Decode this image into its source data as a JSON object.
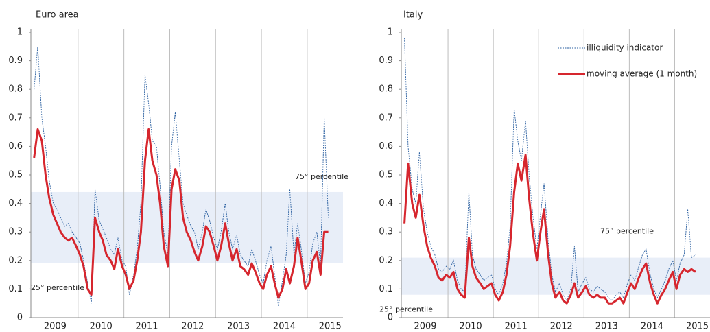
{
  "chart_data": [
    {
      "type": "line",
      "title": "Euro area",
      "x": [
        2009.04,
        2009.12,
        2009.21,
        2009.29,
        2009.37,
        2009.46,
        2009.54,
        2009.62,
        2009.71,
        2009.79,
        2009.87,
        2009.96,
        2010.04,
        2010.12,
        2010.21,
        2010.29,
        2010.37,
        2010.46,
        2010.54,
        2010.62,
        2010.71,
        2010.79,
        2010.87,
        2010.96,
        2011.04,
        2011.12,
        2011.21,
        2011.29,
        2011.37,
        2011.46,
        2011.54,
        2011.62,
        2011.71,
        2011.79,
        2011.87,
        2011.96,
        2012.04,
        2012.12,
        2012.21,
        2012.29,
        2012.37,
        2012.46,
        2012.54,
        2012.62,
        2012.71,
        2012.79,
        2012.87,
        2012.96,
        2013.04,
        2013.12,
        2013.21,
        2013.29,
        2013.37,
        2013.46,
        2013.54,
        2013.62,
        2013.71,
        2013.79,
        2013.87,
        2013.96,
        2014.04,
        2014.12,
        2014.21,
        2014.29,
        2014.37,
        2014.46,
        2014.54,
        2014.62,
        2014.71,
        2014.79,
        2014.87,
        2014.96,
        2015.04,
        2015.12,
        2015.21,
        2015.29,
        2015.37,
        2015.46
      ],
      "series": [
        {
          "color": "#2a5fa0",
          "style": "dotted",
          "values": [
            0.8,
            0.95,
            0.7,
            0.6,
            0.48,
            0.4,
            0.38,
            0.35,
            0.32,
            0.33,
            0.3,
            0.28,
            0.26,
            0.2,
            0.12,
            0.05,
            0.45,
            0.34,
            0.31,
            0.28,
            0.24,
            0.22,
            0.28,
            0.2,
            0.18,
            0.08,
            0.15,
            0.24,
            0.4,
            0.85,
            0.75,
            0.62,
            0.6,
            0.46,
            0.3,
            0.22,
            0.6,
            0.72,
            0.55,
            0.4,
            0.36,
            0.32,
            0.3,
            0.24,
            0.3,
            0.38,
            0.34,
            0.28,
            0.24,
            0.3,
            0.4,
            0.3,
            0.24,
            0.29,
            0.22,
            0.2,
            0.18,
            0.24,
            0.2,
            0.15,
            0.12,
            0.2,
            0.25,
            0.15,
            0.04,
            0.13,
            0.22,
            0.45,
            0.22,
            0.33,
            0.24,
            0.12,
            0.16,
            0.26,
            0.3,
            0.18,
            0.7,
            0.35
          ]
        },
        {
          "color": "#d6262e",
          "style": "solid",
          "values": [
            0.56,
            0.66,
            0.62,
            0.5,
            0.42,
            0.36,
            0.33,
            0.3,
            0.28,
            0.27,
            0.28,
            0.25,
            0.22,
            0.18,
            0.1,
            0.08,
            0.35,
            0.3,
            0.27,
            0.22,
            0.2,
            0.17,
            0.24,
            0.18,
            0.15,
            0.1,
            0.13,
            0.2,
            0.3,
            0.55,
            0.66,
            0.55,
            0.5,
            0.4,
            0.25,
            0.18,
            0.45,
            0.52,
            0.48,
            0.35,
            0.3,
            0.27,
            0.23,
            0.2,
            0.25,
            0.32,
            0.3,
            0.25,
            0.2,
            0.25,
            0.33,
            0.26,
            0.2,
            0.24,
            0.18,
            0.17,
            0.15,
            0.19,
            0.16,
            0.12,
            0.1,
            0.15,
            0.18,
            0.12,
            0.07,
            0.1,
            0.17,
            0.12,
            0.18,
            0.28,
            0.2,
            0.1,
            0.12,
            0.2,
            0.23,
            0.15,
            0.3,
            0.3
          ]
        }
      ],
      "band": [
        0.19,
        0.44
      ],
      "band_color": "#e8eef8",
      "annotations": [
        "75° percentile",
        "25° percentile"
      ],
      "xlim": [
        2008.97,
        2015.78
      ],
      "xgrid": [
        2010,
        2011,
        2012,
        2013,
        2014,
        2015
      ],
      "xticks": [
        {
          "value": 2009.5,
          "label": "2009"
        },
        {
          "value": 2010.5,
          "label": "2010"
        },
        {
          "value": 2011.5,
          "label": "2011"
        },
        {
          "value": 2012.5,
          "label": "2012"
        },
        {
          "value": 2013.5,
          "label": "2013"
        },
        {
          "value": 2014.5,
          "label": "2014"
        },
        {
          "value": 2015.5,
          "label": "2015"
        }
      ],
      "ylim": [
        0,
        1
      ],
      "yticks": [
        0,
        0.1,
        0.2,
        0.3,
        0.4,
        0.5,
        0.6,
        0.7,
        0.8,
        0.9,
        1
      ]
    },
    {
      "type": "line",
      "title": "Italy",
      "x": [
        2009.04,
        2009.12,
        2009.21,
        2009.29,
        2009.37,
        2009.46,
        2009.54,
        2009.62,
        2009.71,
        2009.79,
        2009.87,
        2009.96,
        2010.04,
        2010.12,
        2010.21,
        2010.29,
        2010.37,
        2010.46,
        2010.54,
        2010.62,
        2010.71,
        2010.79,
        2010.87,
        2010.96,
        2011.04,
        2011.12,
        2011.21,
        2011.29,
        2011.37,
        2011.46,
        2011.54,
        2011.62,
        2011.71,
        2011.79,
        2011.87,
        2011.96,
        2012.04,
        2012.12,
        2012.21,
        2012.29,
        2012.37,
        2012.46,
        2012.54,
        2012.62,
        2012.71,
        2012.79,
        2012.87,
        2012.96,
        2013.04,
        2013.12,
        2013.21,
        2013.29,
        2013.37,
        2013.46,
        2013.54,
        2013.62,
        2013.71,
        2013.79,
        2013.87,
        2013.96,
        2014.04,
        2014.12,
        2014.21,
        2014.29,
        2014.37,
        2014.46,
        2014.54,
        2014.62,
        2014.71,
        2014.79,
        2014.87,
        2014.96,
        2015.04,
        2015.12,
        2015.21,
        2015.29,
        2015.37,
        2015.46
      ],
      "series": [
        {
          "name": "illiquidity indicator",
          "color": "#2a5fa0",
          "style": "dotted",
          "values": [
            0.98,
            0.6,
            0.45,
            0.4,
            0.58,
            0.38,
            0.3,
            0.25,
            0.22,
            0.17,
            0.16,
            0.18,
            0.17,
            0.2,
            0.13,
            0.1,
            0.09,
            0.44,
            0.22,
            0.17,
            0.15,
            0.13,
            0.14,
            0.15,
            0.1,
            0.08,
            0.12,
            0.19,
            0.32,
            0.73,
            0.62,
            0.55,
            0.69,
            0.5,
            0.36,
            0.24,
            0.36,
            0.47,
            0.27,
            0.15,
            0.09,
            0.12,
            0.08,
            0.06,
            0.1,
            0.25,
            0.09,
            0.12,
            0.14,
            0.1,
            0.09,
            0.11,
            0.1,
            0.09,
            0.07,
            0.06,
            0.08,
            0.09,
            0.07,
            0.12,
            0.15,
            0.13,
            0.18,
            0.22,
            0.24,
            0.15,
            0.1,
            0.07,
            0.1,
            0.13,
            0.17,
            0.2,
            0.13,
            0.19,
            0.22,
            0.38,
            0.21,
            0.22
          ]
        },
        {
          "name": "moving average (1 month)",
          "color": "#d6262e",
          "style": "solid",
          "values": [
            0.33,
            0.54,
            0.4,
            0.35,
            0.43,
            0.32,
            0.25,
            0.21,
            0.18,
            0.14,
            0.13,
            0.15,
            0.14,
            0.16,
            0.1,
            0.08,
            0.07,
            0.28,
            0.18,
            0.14,
            0.12,
            0.1,
            0.11,
            0.12,
            0.08,
            0.06,
            0.09,
            0.15,
            0.25,
            0.44,
            0.54,
            0.48,
            0.57,
            0.42,
            0.3,
            0.2,
            0.3,
            0.38,
            0.22,
            0.12,
            0.07,
            0.09,
            0.06,
            0.05,
            0.08,
            0.12,
            0.07,
            0.09,
            0.11,
            0.08,
            0.07,
            0.08,
            0.07,
            0.07,
            0.05,
            0.05,
            0.06,
            0.07,
            0.05,
            0.09,
            0.12,
            0.1,
            0.14,
            0.17,
            0.19,
            0.12,
            0.08,
            0.05,
            0.08,
            0.1,
            0.13,
            0.16,
            0.1,
            0.15,
            0.17,
            0.16,
            0.17,
            0.16
          ]
        }
      ],
      "band": [
        0.08,
        0.21
      ],
      "band_color": "#e8eef8",
      "annotations": [
        "75° percentile",
        "25° percentile"
      ],
      "legend": "upper right",
      "xlim": [
        2008.97,
        2015.78
      ],
      "xgrid": [
        2010,
        2011,
        2012,
        2013,
        2014,
        2015
      ],
      "xticks": [
        {
          "value": 2009.5,
          "label": "2009"
        },
        {
          "value": 2010.5,
          "label": "2010"
        },
        {
          "value": 2011.5,
          "label": "2011"
        },
        {
          "value": 2012.5,
          "label": "2012"
        },
        {
          "value": 2013.5,
          "label": "2013"
        },
        {
          "value": 2014.5,
          "label": "2014"
        },
        {
          "value": 2015.5,
          "label": "2015"
        }
      ],
      "ylim": [
        0,
        1
      ],
      "yticks": [
        0,
        0.1,
        0.2,
        0.3,
        0.4,
        0.5,
        0.6,
        0.7,
        0.8,
        0.9,
        1
      ]
    }
  ]
}
